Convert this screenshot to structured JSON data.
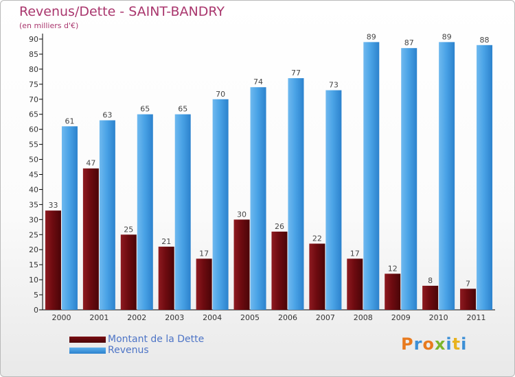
{
  "title": "Revenus/Dette - SAINT-BANDRY",
  "subtitle": "(en milliers d'€)",
  "colors": {
    "dette": "#6e0b10",
    "revenus": "#3d98df",
    "title": "#a9366d"
  },
  "legend": {
    "dette_label": "Montant de la Dette",
    "revenus_label": "Revenus"
  },
  "logo": {
    "text": "Proxiti"
  },
  "chart_data": {
    "type": "bar",
    "title": "Revenus/Dette - SAINT-BANDRY",
    "ylabel": "(en milliers d'€)",
    "xlabel": "",
    "categories": [
      "2000",
      "2001",
      "2002",
      "2003",
      "2004",
      "2005",
      "2006",
      "2007",
      "2008",
      "2009",
      "2010",
      "2011"
    ],
    "series": [
      {
        "name": "Montant de la Dette",
        "values": [
          33,
          47,
          25,
          21,
          17,
          30,
          26,
          22,
          17,
          12,
          8,
          7
        ]
      },
      {
        "name": "Revenus",
        "values": [
          61,
          63,
          65,
          65,
          70,
          74,
          77,
          73,
          89,
          87,
          89,
          88
        ]
      }
    ],
    "ylim": [
      0,
      90
    ],
    "yticks": [
      0,
      5,
      10,
      15,
      20,
      25,
      30,
      35,
      40,
      45,
      50,
      55,
      60,
      65,
      70,
      75,
      80,
      85,
      90
    ],
    "grid": false,
    "legend_position": "bottom-left"
  }
}
